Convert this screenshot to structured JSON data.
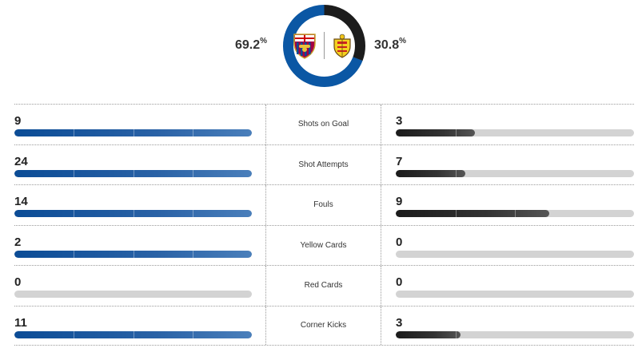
{
  "possession": {
    "home_pct": "69.2",
    "away_pct": "30.8",
    "pct_sign": "%",
    "home_value": 69.2,
    "away_value": 30.8,
    "home_color": "#0b57a4",
    "away_color": "#1c1c1c"
  },
  "teams": {
    "home_logo": "fc-barcelona-crest-icon",
    "away_logo": "villarreal-crest-icon"
  },
  "stats": [
    {
      "label": "Shots on Goal",
      "home": "9",
      "away": "3",
      "home_fill": 1.0,
      "away_fill": 0.333
    },
    {
      "label": "Shot Attempts",
      "home": "24",
      "away": "7",
      "home_fill": 1.0,
      "away_fill": 0.292
    },
    {
      "label": "Fouls",
      "home": "14",
      "away": "9",
      "home_fill": 1.0,
      "away_fill": 0.643
    },
    {
      "label": "Yellow Cards",
      "home": "2",
      "away": "0",
      "home_fill": 1.0,
      "away_fill": 0.0
    },
    {
      "label": "Red Cards",
      "home": "0",
      "away": "0",
      "home_fill": 0.0,
      "away_fill": 0.0
    },
    {
      "label": "Corner Kicks",
      "home": "11",
      "away": "3",
      "home_fill": 1.0,
      "away_fill": 0.273
    }
  ]
}
